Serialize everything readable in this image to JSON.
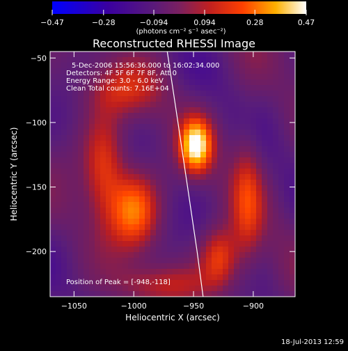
{
  "chart_data": {
    "type": "heatmap",
    "title": "Reconstructed RHESSI Image",
    "xlabel": "Heliocentric X (arcsec)",
    "ylabel": "Heliocentric Y (arcsec)",
    "xlim": [
      -1070,
      -865
    ],
    "ylim": [
      -235,
      -45
    ],
    "x_ticks": [
      {
        "value": -1050,
        "label": "−1050"
      },
      {
        "value": -1000,
        "label": "−1000"
      },
      {
        "value": -950,
        "label": "−950"
      },
      {
        "value": -900,
        "label": "−900"
      }
    ],
    "y_ticks": [
      {
        "value": -50,
        "label": "−50"
      },
      {
        "value": -100,
        "label": "−100"
      },
      {
        "value": -150,
        "label": "−150"
      },
      {
        "value": -200,
        "label": "−200"
      }
    ],
    "colorbar": {
      "min": -0.47,
      "max": 0.47,
      "ticks": [
        {
          "value": -0.47,
          "label": "−0.47"
        },
        {
          "value": -0.28,
          "label": "−0.28"
        },
        {
          "value": -0.094,
          "label": "−0.094"
        },
        {
          "value": 0.094,
          "label": "0.094"
        },
        {
          "value": 0.28,
          "label": "0.28"
        },
        {
          "value": 0.47,
          "label": "0.47"
        }
      ],
      "unit_label": "(photons cm⁻² s⁻¹ asec⁻²)"
    },
    "annotations": [
      "5-Dec-2006 15:56:36.000 to 16:02:34.000",
      "Detectors: 4F 5F 6F 7F 8F, Att 0",
      "Energy Range: 3.0 - 6.0 keV",
      "Clean    Total counts: 7.16E+04"
    ],
    "peak_label": "Position of Peak = [-948,-118]",
    "peak": {
      "x": -948,
      "y": -118,
      "value": 0.47
    },
    "sources": [
      {
        "x": -948,
        "y": -118,
        "amp": 0.52,
        "sx": 9,
        "sy": 14
      },
      {
        "x": -1000,
        "y": -168,
        "amp": 0.34,
        "sx": 14,
        "sy": 20
      },
      {
        "x": -1025,
        "y": -135,
        "amp": 0.26,
        "sx": 12,
        "sy": 28
      },
      {
        "x": -928,
        "y": -205,
        "amp": 0.28,
        "sx": 11,
        "sy": 16
      },
      {
        "x": -1010,
        "y": -75,
        "amp": 0.18,
        "sx": 22,
        "sy": 14
      },
      {
        "x": -905,
        "y": -160,
        "amp": 0.2,
        "sx": 9,
        "sy": 40
      },
      {
        "x": -975,
        "y": -225,
        "amp": 0.15,
        "sx": 30,
        "sy": 10
      }
    ],
    "limb_curve": [
      [
        -972,
        -45
      ],
      [
        -963,
        -100
      ],
      [
        -955,
        -150
      ],
      [
        -947,
        -200
      ],
      [
        -942,
        -235
      ]
    ],
    "footer": "18-Jul-2013 12:59"
  }
}
